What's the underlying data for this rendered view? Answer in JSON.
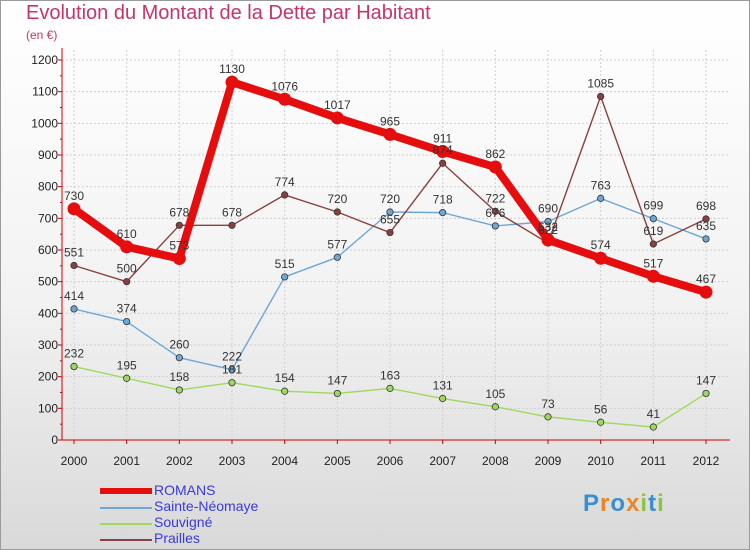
{
  "chart_data": {
    "type": "line",
    "title": "Evolution du Montant de la Dette par Habitant",
    "subtitle": "(en €)",
    "xlabel": "",
    "ylabel": "",
    "x": [
      "2000",
      "2001",
      "2002",
      "2003",
      "2004",
      "2005",
      "2006",
      "2007",
      "2008",
      "2009",
      "2010",
      "2011",
      "2012"
    ],
    "ylim": [
      0,
      1200
    ],
    "yticks": [
      0,
      100,
      200,
      300,
      400,
      500,
      600,
      700,
      800,
      900,
      1000,
      1100,
      1200
    ],
    "grid": true,
    "legend_position": "bottom-left",
    "series": [
      {
        "name": "ROMANS",
        "color": "#e50d0d",
        "values": [
          730,
          610,
          573,
          1130,
          1076,
          1017,
          965,
          911,
          862,
          632,
          574,
          517,
          467
        ]
      },
      {
        "name": "Sainte-Néomaye",
        "color": "#6ea6d6",
        "values": [
          414,
          374,
          260,
          222,
          515,
          577,
          720,
          718,
          676,
          690,
          763,
          699,
          635
        ]
      },
      {
        "name": "Souvigné",
        "color": "#9ed95e",
        "values": [
          232,
          195,
          158,
          181,
          154,
          147,
          163,
          131,
          105,
          73,
          56,
          41,
          147
        ]
      },
      {
        "name": "Prailles",
        "color": "#8a4040",
        "values": [
          551,
          500,
          678,
          678,
          774,
          720,
          655,
          874,
          722,
          622,
          1085,
          619,
          698
        ]
      }
    ]
  },
  "logo": {
    "text": "Proxiti",
    "colors": [
      "#3a8fd0",
      "#e8862a",
      "#3a8fd0",
      "#e8862a",
      "#8bc53f",
      "#3a8fd0",
      "#8bc53f"
    ]
  }
}
